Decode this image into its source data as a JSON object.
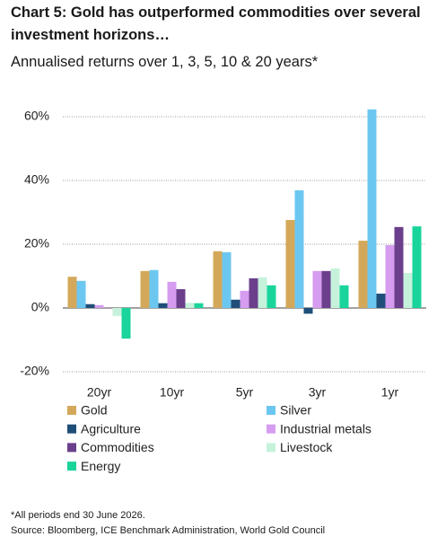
{
  "chart_data": {
    "type": "bar",
    "title": "Chart 5: Gold has outperformed commodities over several investment horizons…",
    "subtitle": "Annualised returns over 1, 3, 5, 10 & 20 years*",
    "categories": [
      "20yr",
      "10yr",
      "5yr",
      "3yr",
      "1yr"
    ],
    "series": [
      {
        "name": "Gold",
        "color": "#d4a85a",
        "values": [
          9.8,
          11.6,
          17.8,
          27.6,
          21.1
        ]
      },
      {
        "name": "Silver",
        "color": "#6cc7f0",
        "values": [
          8.5,
          11.9,
          17.5,
          36.9,
          62.3
        ]
      },
      {
        "name": "Agriculture",
        "color": "#1f4e79",
        "values": [
          1.2,
          1.5,
          2.6,
          -1.8,
          4.5
        ]
      },
      {
        "name": "Industrial metals",
        "color": "#d59cf0",
        "values": [
          0.9,
          8.2,
          5.4,
          11.6,
          19.7
        ]
      },
      {
        "name": "Commodities",
        "color": "#6b3f8c",
        "values": [
          0.1,
          5.9,
          9.3,
          11.6,
          25.4
        ]
      },
      {
        "name": "Livestock",
        "color": "#c6f2dc",
        "values": [
          -2.5,
          1.6,
          9.6,
          12.4,
          11
        ]
      },
      {
        "name": "Energy",
        "color": "#19d49b",
        "values": [
          -9.6,
          1.5,
          7.1,
          7.1,
          25.6
        ]
      }
    ],
    "ylim": [
      -20,
      62
    ],
    "yticks": [
      {
        "value": -20,
        "label": "-20%"
      },
      {
        "value": 0,
        "label": "0%"
      },
      {
        "value": 20,
        "label": "20%"
      },
      {
        "value": 40,
        "label": "40%"
      },
      {
        "value": 60,
        "label": "60%"
      }
    ],
    "grid": true,
    "notes": [
      "*All periods end 30 June 2026.",
      "Source: Bloomberg, ICE Benchmark Administration, World Gold Council"
    ]
  }
}
